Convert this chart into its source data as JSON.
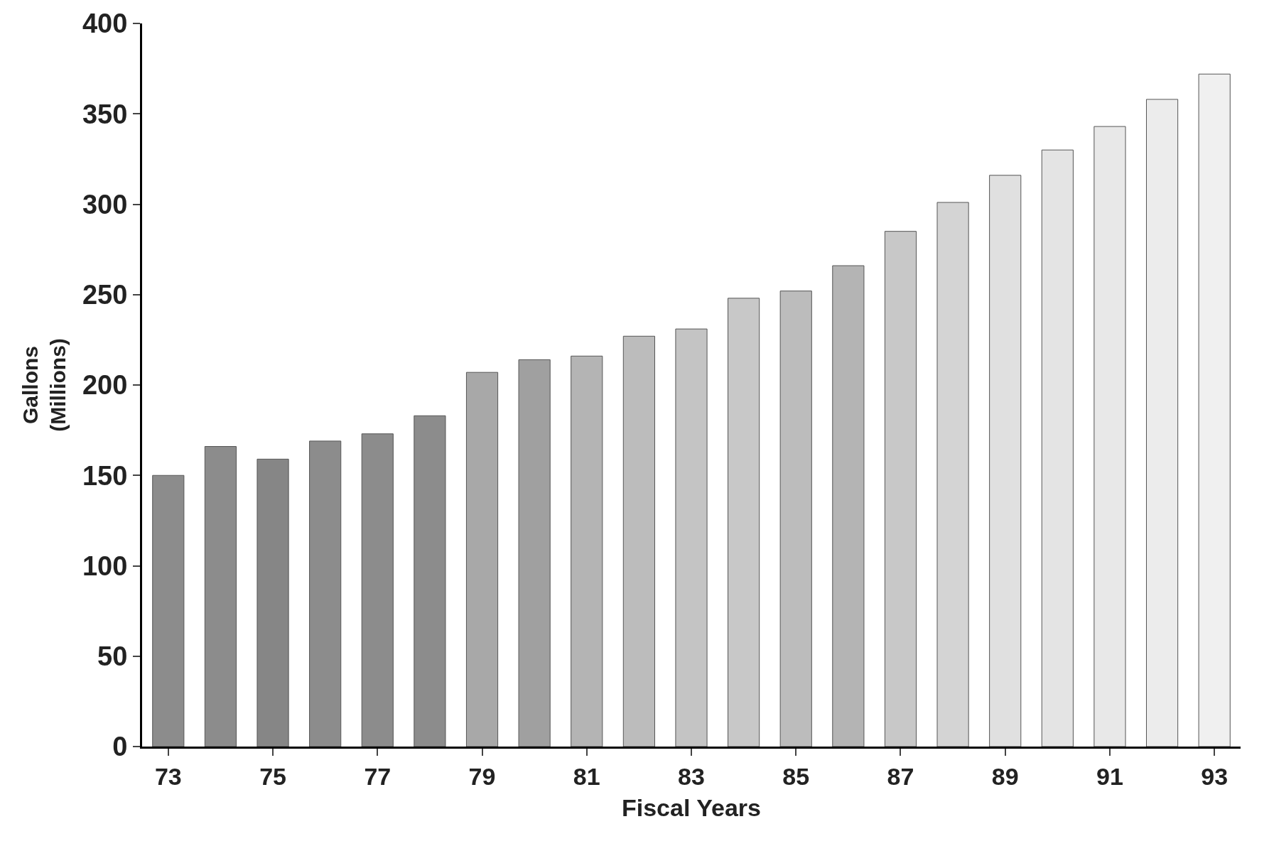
{
  "chart_data": {
    "type": "bar",
    "xlabel": "Fiscal Years",
    "ylabel": "Gallons\n(Millions)",
    "categories": [
      "73",
      null,
      "75",
      null,
      "77",
      null,
      "79",
      null,
      "81",
      null,
      "83",
      null,
      "85",
      null,
      "87",
      null,
      "89",
      null,
      "91",
      null,
      "93"
    ],
    "values": [
      150,
      166,
      159,
      169,
      173,
      183,
      207,
      214,
      216,
      227,
      231,
      248,
      252,
      266,
      285,
      301,
      316,
      330,
      343,
      358,
      372
    ],
    "colors": [
      "#8c8c8c",
      "#8c8c8c",
      "#868686",
      "#8c8c8c",
      "#8c8c8c",
      "#8c8c8c",
      "#a8a8a8",
      "#a0a0a0",
      "#b4b4b4",
      "#bcbcbc",
      "#c4c4c4",
      "#c8c8c8",
      "#bcbcbc",
      "#b4b4b4",
      "#c8c8c8",
      "#d4d4d4",
      "#e0e0e0",
      "#e4e4e4",
      "#e8e8e8",
      "#ececec",
      "#f0f0f0"
    ],
    "ylim": [
      0,
      400
    ],
    "yticks": [
      0,
      50,
      100,
      150,
      200,
      250,
      300,
      350,
      400
    ]
  }
}
